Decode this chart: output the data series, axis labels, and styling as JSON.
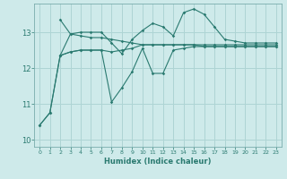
{
  "xlabel": "Humidex (Indice chaleur)",
  "ylabel": "",
  "bg_color": "#ceeaea",
  "line_color": "#2a7a70",
  "grid_color": "#aed4d4",
  "xlim": [
    -0.5,
    23.5
  ],
  "ylim": [
    9.8,
    13.8
  ],
  "yticks": [
    10,
    11,
    12,
    13
  ],
  "xticks": [
    0,
    1,
    2,
    3,
    4,
    5,
    6,
    7,
    8,
    9,
    10,
    11,
    12,
    13,
    14,
    15,
    16,
    17,
    18,
    19,
    20,
    21,
    22,
    23
  ],
  "series": [
    {
      "x": [
        0,
        1,
        2,
        3,
        4,
        5,
        6,
        7,
        8,
        9,
        10,
        11,
        12,
        13,
        14,
        15,
        16,
        17,
        18,
        19,
        20,
        21,
        22,
        23
      ],
      "y": [
        10.4,
        10.75,
        12.35,
        12.95,
        12.9,
        12.85,
        12.85,
        12.8,
        12.75,
        12.7,
        12.65,
        12.65,
        12.65,
        12.65,
        12.65,
        12.65,
        12.6,
        12.6,
        12.6,
        12.6,
        12.6,
        12.6,
        12.6,
        12.6
      ]
    },
    {
      "x": [
        2,
        3,
        4,
        5,
        6,
        7,
        8,
        9,
        10,
        11,
        12,
        13,
        14,
        15,
        16,
        17,
        18,
        19,
        20,
        21,
        22,
        23
      ],
      "y": [
        13.35,
        12.95,
        13.0,
        13.0,
        13.0,
        12.7,
        12.4,
        12.8,
        13.05,
        13.25,
        13.15,
        12.9,
        13.55,
        13.65,
        13.5,
        13.15,
        12.8,
        12.75,
        12.7,
        12.7,
        12.7,
        12.7
      ]
    },
    {
      "x": [
        2,
        3,
        4,
        5,
        6,
        7,
        8,
        9,
        10,
        11,
        12,
        13,
        14,
        15,
        16,
        17,
        18,
        19,
        20,
        21,
        22,
        23
      ],
      "y": [
        12.35,
        12.45,
        12.5,
        12.5,
        12.5,
        12.45,
        12.5,
        12.55,
        12.65,
        12.65,
        12.65,
        12.65,
        12.65,
        12.65,
        12.65,
        12.65,
        12.65,
        12.65,
        12.65,
        12.65,
        12.65,
        12.65
      ]
    },
    {
      "x": [
        0,
        1,
        2,
        3,
        4,
        5,
        6,
        7,
        8,
        9,
        10,
        11,
        12,
        13,
        14,
        15,
        16,
        17,
        18,
        19,
        20,
        21,
        22,
        23
      ],
      "y": [
        10.4,
        10.75,
        12.35,
        12.45,
        12.5,
        12.5,
        12.5,
        11.05,
        11.45,
        11.9,
        12.55,
        11.85,
        11.85,
        12.5,
        12.55,
        12.6,
        12.6,
        12.6,
        12.6,
        12.6,
        12.6,
        12.6,
        12.6,
        12.6
      ]
    }
  ]
}
